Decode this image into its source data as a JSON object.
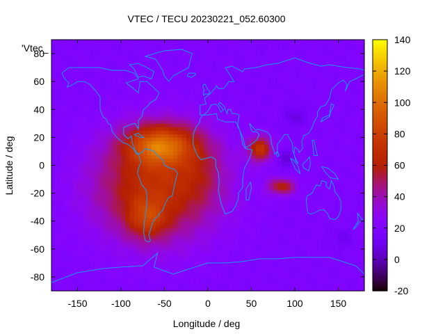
{
  "chart_data": {
    "type": "heatmap",
    "title": "VTEC / TECU 20230221_052.60300",
    "xlabel": "Longitude / deg",
    "ylabel": "Latitude / deg",
    "key_label": "'Vtec_",
    "xlim": [
      -180,
      180
    ],
    "ylim": [
      -90,
      90
    ],
    "xticks": [
      -150,
      -100,
      -50,
      0,
      50,
      100,
      150
    ],
    "yticks": [
      -80,
      -60,
      -40,
      -20,
      0,
      20,
      40,
      60,
      80
    ],
    "colorbar": {
      "min": -20,
      "max": 140,
      "ticks": [
        -20,
        0,
        20,
        40,
        60,
        80,
        100,
        120,
        140
      ],
      "palette": "gnuplot-rgbformulae-7-5-15"
    },
    "grid_resolution_deg": {
      "lon": 5,
      "lat": 2.5
    },
    "background_tecu": 20,
    "features": [
      {
        "name": "equatorial-anomaly-peak",
        "lon": -55,
        "lat": 15,
        "tecu": 128
      },
      {
        "name": "south-atlantic-crest",
        "lon": -60,
        "lat": -15,
        "tecu": 95
      },
      {
        "name": "south-america-extension",
        "lon": -70,
        "lat": -38,
        "tecu": 74
      },
      {
        "name": "africa-plume",
        "lon": -10,
        "lat": 0,
        "tecu": 85
      },
      {
        "name": "arabian-sea-tail",
        "lon": 60,
        "lat": 12,
        "tecu": 78
      },
      {
        "name": "indian-ocean-tail",
        "lon": 85,
        "lat": -15,
        "tecu": 70
      },
      {
        "name": "depletion-south-asia",
        "lon": 88,
        "lat": 5,
        "tecu": 5
      },
      {
        "name": "depletion-central-asia",
        "lon": 100,
        "lat": 35,
        "tecu": 8
      },
      {
        "name": "depletion-south-pacific",
        "lon": 155,
        "lat": -52,
        "tecu": 12
      }
    ],
    "coastline_color": "#1a99ff"
  }
}
